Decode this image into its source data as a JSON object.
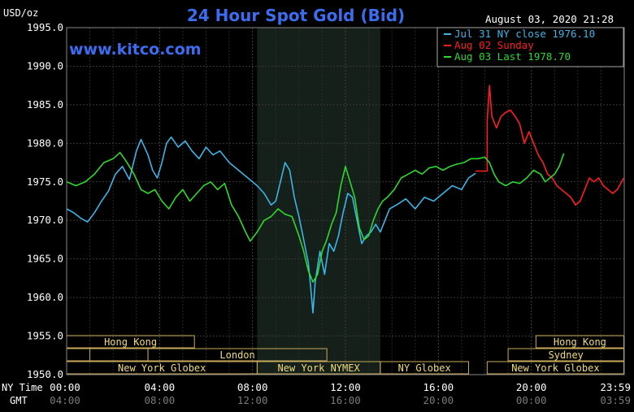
{
  "chart_data": {
    "type": "line",
    "title": "24 Hour Spot Gold (Bid)",
    "unit_label": "USD/oz",
    "timestamp": "August 03, 2020 21:28",
    "watermark": "www.kitco.com",
    "ylim": [
      1950,
      1995
    ],
    "y_ticks": [
      "1995.0",
      "1990.0",
      "1985.0",
      "1980.0",
      "1975.0",
      "1970.0",
      "1965.0",
      "1960.0",
      "1955.0",
      "1950.0"
    ],
    "y_tick_values": [
      1995,
      1990,
      1985,
      1980,
      1975,
      1970,
      1965,
      1960,
      1955,
      1950
    ],
    "xlim": [
      0,
      24
    ],
    "x_row_labels": {
      "ny": "NY Time",
      "gmt": "GMT"
    },
    "x_ticks_ny": [
      "00:00",
      "04:00",
      "08:00",
      "12:00",
      "16:00",
      "20:00",
      "23:59"
    ],
    "x_ticks_gmt": [
      "04:00",
      "08:00",
      "12:00",
      "16:00",
      "20:00",
      "00:00",
      "03:59"
    ],
    "x_tick_hours": [
      0,
      4,
      8,
      12,
      16,
      20,
      23.98
    ],
    "shaded_region": [
      8.2,
      13.5
    ],
    "legend_position": "top-right",
    "series": [
      {
        "name": "Jul 31 NY close 1976.10",
        "color": "#3cb4e6",
        "points": [
          [
            0,
            1971.5
          ],
          [
            0.3,
            1971
          ],
          [
            0.6,
            1970.3
          ],
          [
            0.9,
            1969.8
          ],
          [
            1.2,
            1971
          ],
          [
            1.5,
            1972.5
          ],
          [
            1.8,
            1973.8
          ],
          [
            2.1,
            1976
          ],
          [
            2.4,
            1977
          ],
          [
            2.7,
            1975.3
          ],
          [
            3.0,
            1979
          ],
          [
            3.2,
            1980.5
          ],
          [
            3.5,
            1978.5
          ],
          [
            3.7,
            1976.5
          ],
          [
            3.9,
            1975.5
          ],
          [
            4.1,
            1977.5
          ],
          [
            4.3,
            1980
          ],
          [
            4.5,
            1980.8
          ],
          [
            4.8,
            1979.5
          ],
          [
            5.1,
            1980.3
          ],
          [
            5.4,
            1979
          ],
          [
            5.7,
            1978
          ],
          [
            6.0,
            1979.5
          ],
          [
            6.3,
            1978.5
          ],
          [
            6.6,
            1979
          ],
          [
            7.0,
            1977.5
          ],
          [
            7.4,
            1976.5
          ],
          [
            7.8,
            1975.5
          ],
          [
            8.2,
            1974.5
          ],
          [
            8.5,
            1973.5
          ],
          [
            8.8,
            1972
          ],
          [
            9.0,
            1972.5
          ],
          [
            9.2,
            1975
          ],
          [
            9.4,
            1977.5
          ],
          [
            9.6,
            1976.5
          ],
          [
            9.8,
            1973
          ],
          [
            10.0,
            1970.5
          ],
          [
            10.2,
            1967.5
          ],
          [
            10.4,
            1964.5
          ],
          [
            10.5,
            1961.5
          ],
          [
            10.6,
            1958
          ],
          [
            10.7,
            1962
          ],
          [
            10.9,
            1966
          ],
          [
            11.1,
            1963
          ],
          [
            11.3,
            1967
          ],
          [
            11.5,
            1966
          ],
          [
            11.7,
            1968
          ],
          [
            11.9,
            1971
          ],
          [
            12.1,
            1973.5
          ],
          [
            12.3,
            1973
          ],
          [
            12.5,
            1970
          ],
          [
            12.7,
            1967
          ],
          [
            12.9,
            1968
          ],
          [
            13.1,
            1968.5
          ],
          [
            13.3,
            1969.5
          ],
          [
            13.5,
            1968.5
          ],
          [
            13.7,
            1970
          ],
          [
            13.9,
            1971.5
          ],
          [
            14.2,
            1972
          ],
          [
            14.6,
            1972.8
          ],
          [
            15.0,
            1971.5
          ],
          [
            15.4,
            1973
          ],
          [
            15.8,
            1972.5
          ],
          [
            16.2,
            1973.5
          ],
          [
            16.6,
            1974.5
          ],
          [
            17.0,
            1974
          ],
          [
            17.3,
            1975.5
          ],
          [
            17.6,
            1976.1
          ]
        ]
      },
      {
        "name": "Aug 02 Sunday",
        "color": "#ff1e1e",
        "points": [
          [
            17.6,
            1976.4
          ],
          [
            18.1,
            1976.4
          ],
          [
            18.1,
            1983
          ],
          [
            18.2,
            1987.5
          ],
          [
            18.3,
            1983.5
          ],
          [
            18.5,
            1982
          ],
          [
            18.7,
            1983.5
          ],
          [
            18.9,
            1984
          ],
          [
            19.1,
            1984.3
          ],
          [
            19.3,
            1983.5
          ],
          [
            19.5,
            1982.5
          ],
          [
            19.7,
            1980
          ],
          [
            19.9,
            1981.5
          ],
          [
            20.1,
            1980
          ],
          [
            20.3,
            1978.5
          ],
          [
            20.5,
            1977.5
          ],
          [
            20.7,
            1976
          ],
          [
            20.9,
            1975.5
          ],
          [
            21.1,
            1974.5
          ],
          [
            21.3,
            1974
          ],
          [
            21.5,
            1973.5
          ],
          [
            21.7,
            1973
          ],
          [
            21.9,
            1972
          ],
          [
            22.1,
            1972.5
          ],
          [
            22.3,
            1974
          ],
          [
            22.5,
            1975.5
          ],
          [
            22.7,
            1975
          ],
          [
            22.9,
            1975.5
          ],
          [
            23.1,
            1974.5
          ],
          [
            23.3,
            1974
          ],
          [
            23.5,
            1973.5
          ],
          [
            23.7,
            1974
          ],
          [
            23.98,
            1975.5
          ]
        ]
      },
      {
        "name": "Aug 03 Last 1978.70",
        "color": "#2ed82e",
        "points": [
          [
            0,
            1975
          ],
          [
            0.4,
            1974.5
          ],
          [
            0.8,
            1975
          ],
          [
            1.2,
            1976
          ],
          [
            1.6,
            1977.5
          ],
          [
            2.0,
            1978
          ],
          [
            2.3,
            1978.8
          ],
          [
            2.6,
            1977.5
          ],
          [
            2.9,
            1976
          ],
          [
            3.2,
            1974
          ],
          [
            3.5,
            1973.5
          ],
          [
            3.8,
            1974
          ],
          [
            4.1,
            1972.5
          ],
          [
            4.4,
            1971.5
          ],
          [
            4.7,
            1973
          ],
          [
            5.0,
            1974
          ],
          [
            5.3,
            1972.5
          ],
          [
            5.6,
            1973.5
          ],
          [
            5.9,
            1974.5
          ],
          [
            6.2,
            1975
          ],
          [
            6.5,
            1974
          ],
          [
            6.8,
            1974.8
          ],
          [
            7.1,
            1972
          ],
          [
            7.4,
            1970.5
          ],
          [
            7.7,
            1968.5
          ],
          [
            7.9,
            1967.3
          ],
          [
            8.2,
            1968.5
          ],
          [
            8.5,
            1970
          ],
          [
            8.8,
            1970.5
          ],
          [
            9.1,
            1971.5
          ],
          [
            9.4,
            1970.8
          ],
          [
            9.7,
            1970.5
          ],
          [
            10.0,
            1968
          ],
          [
            10.2,
            1966
          ],
          [
            10.4,
            1963.5
          ],
          [
            10.6,
            1962
          ],
          [
            10.8,
            1963
          ],
          [
            11.0,
            1966
          ],
          [
            11.2,
            1967.5
          ],
          [
            11.4,
            1969.5
          ],
          [
            11.6,
            1971
          ],
          [
            11.8,
            1974.5
          ],
          [
            12.0,
            1977
          ],
          [
            12.2,
            1975
          ],
          [
            12.4,
            1973
          ],
          [
            12.6,
            1969
          ],
          [
            12.8,
            1967.5
          ],
          [
            13.0,
            1968
          ],
          [
            13.2,
            1970
          ],
          [
            13.4,
            1971.5
          ],
          [
            13.6,
            1972.5
          ],
          [
            13.8,
            1973
          ],
          [
            14.1,
            1974
          ],
          [
            14.4,
            1975.5
          ],
          [
            14.7,
            1976
          ],
          [
            15.0,
            1976.5
          ],
          [
            15.3,
            1976
          ],
          [
            15.6,
            1976.8
          ],
          [
            15.9,
            1977
          ],
          [
            16.2,
            1976.5
          ],
          [
            16.5,
            1977
          ],
          [
            16.8,
            1977.3
          ],
          [
            17.1,
            1977.5
          ],
          [
            17.4,
            1978
          ],
          [
            17.7,
            1978
          ],
          [
            18.0,
            1978.2
          ],
          [
            18.2,
            1977.5
          ],
          [
            18.4,
            1976
          ],
          [
            18.6,
            1975
          ],
          [
            18.9,
            1974.5
          ],
          [
            19.2,
            1975
          ],
          [
            19.5,
            1974.8
          ],
          [
            19.8,
            1975.5
          ],
          [
            20.1,
            1976.5
          ],
          [
            20.4,
            1976
          ],
          [
            20.6,
            1975
          ],
          [
            20.8,
            1975.5
          ],
          [
            21.0,
            1976
          ],
          [
            21.2,
            1977
          ],
          [
            21.4,
            1978.7
          ]
        ]
      }
    ],
    "market_bars": {
      "color": "#c8aa5a",
      "text_color": "#f0dc78",
      "rows": [
        [
          {
            "label": "Hong Kong",
            "start": 0,
            "end": 5.5
          },
          {
            "label": "Hong Kong",
            "start": 20.2,
            "end": 23.98
          }
        ],
        [
          {
            "label": "",
            "start": 0,
            "end": 1.0
          },
          {
            "label": "",
            "start": 0,
            "end": 3.5
          },
          {
            "label": "London",
            "start": 3.5,
            "end": 11.2
          },
          {
            "label": "Sydney",
            "start": 19.0,
            "end": 23.98
          }
        ],
        [
          {
            "label": "New York Globex",
            "start": 0,
            "end": 8.2
          },
          {
            "label": "New York NYMEX",
            "start": 8.2,
            "end": 13.5
          },
          {
            "label": "NY Globex",
            "start": 13.5,
            "end": 17.3
          },
          {
            "label": "New York Globex",
            "start": 18.1,
            "end": 23.98
          }
        ]
      ]
    }
  }
}
